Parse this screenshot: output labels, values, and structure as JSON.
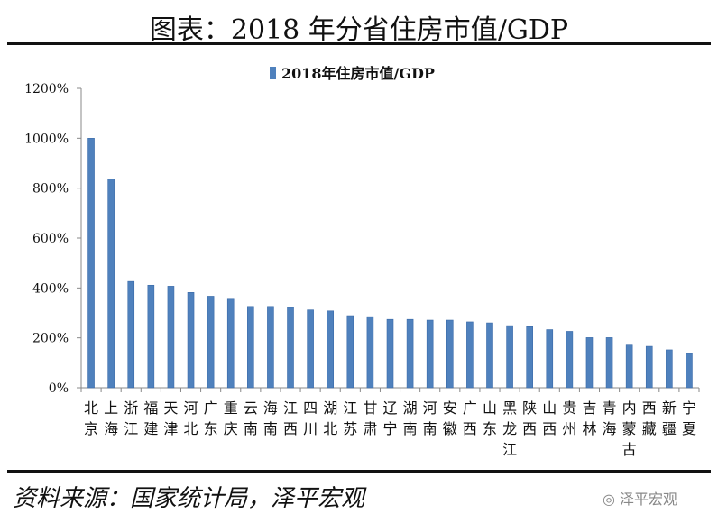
{
  "title": "图表：2018 年分省住房市值/GDP",
  "source": "资料来源：国家统计局，泽平宏观",
  "watermark": "泽平宏观",
  "chart_data": {
    "type": "bar",
    "title": "",
    "legend": {
      "position": "top",
      "entries": [
        "2018年住房市值/GDP"
      ]
    },
    "series": [
      {
        "name": "2018年住房市值/GDP",
        "color": "#4f81bd",
        "values": [
          1000,
          836,
          426,
          411,
          407,
          382,
          367,
          355,
          326,
          326,
          322,
          312,
          308,
          289,
          285,
          274,
          274,
          271,
          271,
          264,
          260,
          249,
          245,
          233,
          226,
          201,
          201,
          171,
          166,
          152,
          137
        ]
      }
    ],
    "categories": [
      "北京",
      "上海",
      "浙江",
      "福建",
      "天津",
      "河北",
      "广东",
      "重庆",
      "云南",
      "海南",
      "江西",
      "四川",
      "湖北",
      "江苏",
      "甘肃",
      "辽宁",
      "湖南",
      "河南",
      "安徽",
      "广西",
      "山东",
      "黑龙江",
      "陕西",
      "山西",
      "贵州",
      "吉林",
      "青海",
      "内蒙古",
      "西藏",
      "新疆",
      "宁夏"
    ],
    "yticks": [
      "0%",
      "200%",
      "400%",
      "600%",
      "800%",
      "1000%",
      "1200%"
    ],
    "ylim": [
      0,
      1200
    ],
    "unit": "%",
    "grid": false
  }
}
